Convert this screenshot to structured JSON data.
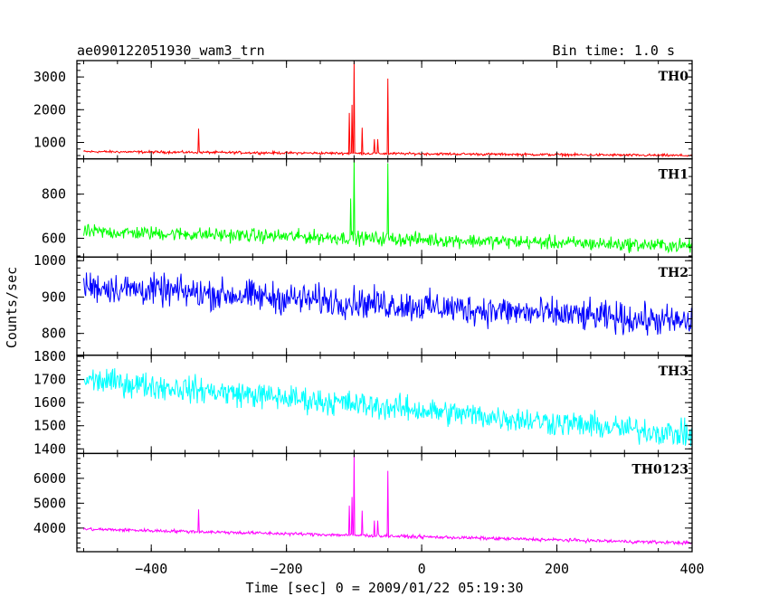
{
  "header": {
    "title": "ae090122051930_wam3_trn",
    "bin_time": "Bin time: 1.0 s"
  },
  "chart_data": {
    "type": "line",
    "xlabel": "Time [sec] 0 = 2009/01/22 05:19:30",
    "ylabel": "Counts/sec",
    "xlim": [
      -510,
      400
    ],
    "x_ticks": [
      -400,
      -200,
      0,
      200,
      400
    ],
    "x_tick_labels": [
      "−400",
      "−200",
      "0",
      "200",
      "400"
    ],
    "grid": false,
    "panels": [
      {
        "name": "TH0",
        "color": "#ff0000",
        "ylim": [
          500,
          3500
        ],
        "y_ticks": [
          1000,
          2000,
          3000
        ],
        "y_tick_labels": [
          "1000",
          "2000",
          "3000"
        ],
        "baseline_start": 720,
        "baseline_end": 600,
        "noise": 35,
        "spikes": [
          [
            -330,
            1420
          ],
          [
            -107,
            1900
          ],
          [
            -103,
            2150
          ],
          [
            -100,
            3480
          ],
          [
            -88,
            1450
          ],
          [
            -70,
            1100
          ],
          [
            -65,
            1100
          ],
          [
            -50,
            2950
          ]
        ]
      },
      {
        "name": "TH1",
        "color": "#00ff00",
        "ylim": [
          515,
          960
        ],
        "y_ticks": [
          600,
          800
        ],
        "y_tick_labels": [
          "600",
          "800"
        ],
        "baseline_start": 630,
        "baseline_end": 565,
        "noise": 28,
        "spikes": [
          [
            -105,
            780
          ],
          [
            -100,
            960
          ],
          [
            -50,
            940
          ]
        ]
      },
      {
        "name": "TH2",
        "color": "#0000ff",
        "ylim": [
          740,
          1010
        ],
        "y_ticks": [
          800,
          900,
          1000
        ],
        "y_tick_labels": [
          "800",
          "900",
          "1000"
        ],
        "baseline_start": 930,
        "baseline_end": 830,
        "noise": 38,
        "spikes": []
      },
      {
        "name": "TH3",
        "color": "#00ffff",
        "ylim": [
          1380,
          1805
        ],
        "y_ticks": [
          1400,
          1500,
          1600,
          1700,
          1800
        ],
        "y_tick_labels": [
          "1400",
          "1500",
          "1600",
          "1700",
          "1800"
        ],
        "baseline_start": 1700,
        "baseline_end": 1460,
        "noise": 50,
        "spikes": []
      },
      {
        "name": "TH0123",
        "color": "#ff00ff",
        "ylim": [
          3050,
          7000
        ],
        "y_ticks": [
          4000,
          5000,
          6000
        ],
        "y_tick_labels": [
          "4000",
          "5000",
          "6000"
        ],
        "baseline_start": 3960,
        "baseline_end": 3400,
        "noise": 60,
        "spikes": [
          [
            -330,
            4750
          ],
          [
            -107,
            4900
          ],
          [
            -103,
            5250
          ],
          [
            -100,
            6900
          ],
          [
            -88,
            4700
          ],
          [
            -70,
            4300
          ],
          [
            -65,
            4300
          ],
          [
            -50,
            6300
          ]
        ]
      }
    ]
  }
}
